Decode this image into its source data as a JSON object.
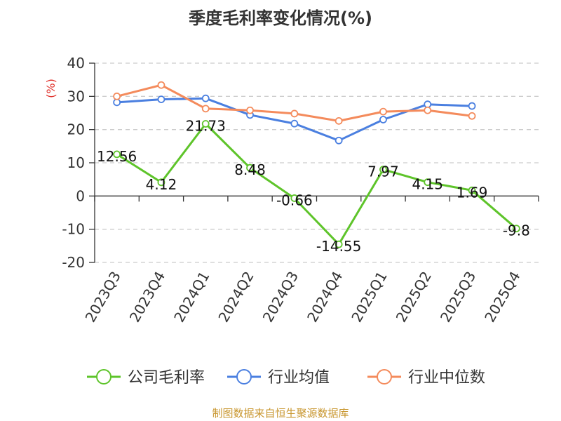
{
  "chart_data": {
    "type": "line",
    "title": "季度毛利率变化情况(%)",
    "ylabel": "(%)",
    "xlabel": "",
    "ylim": [
      -20,
      40
    ],
    "yticks": [
      -20,
      -10,
      0,
      10,
      20,
      30,
      40
    ],
    "categories": [
      "2023Q3",
      "2023Q4",
      "2024Q1",
      "2024Q2",
      "2024Q3",
      "2024Q4",
      "2025Q1",
      "2025Q2",
      "2025Q3",
      "2025Q4"
    ],
    "series": [
      {
        "name": "公司毛利率",
        "color": "#5ec42a",
        "values": [
          12.56,
          4.12,
          21.73,
          8.48,
          -0.66,
          -14.55,
          7.97,
          4.15,
          1.69,
          -9.8
        ],
        "labels": [
          "12.56",
          "4.12",
          "21.73",
          "8.48",
          "-0.66",
          "-14.55",
          "7.97",
          "4.15",
          "1.69",
          "-9.8"
        ]
      },
      {
        "name": "行业均值",
        "color": "#4a7fe0",
        "values": [
          28.2,
          29.1,
          29.4,
          24.4,
          21.8,
          16.7,
          23.0,
          27.6,
          27.1,
          null
        ]
      },
      {
        "name": "行业中位数",
        "color": "#f48b5c",
        "values": [
          30.0,
          33.4,
          26.3,
          25.8,
          24.8,
          22.6,
          25.4,
          25.8,
          24.1,
          null
        ]
      }
    ],
    "grid": true,
    "legend_position": "bottom"
  },
  "source": "制图数据来自恒生聚源数据库",
  "colors": {
    "title": "#333333",
    "ylabel": "#e0302a",
    "axis": "#333333",
    "grid": "#cccccc",
    "source": "#c8962e"
  }
}
